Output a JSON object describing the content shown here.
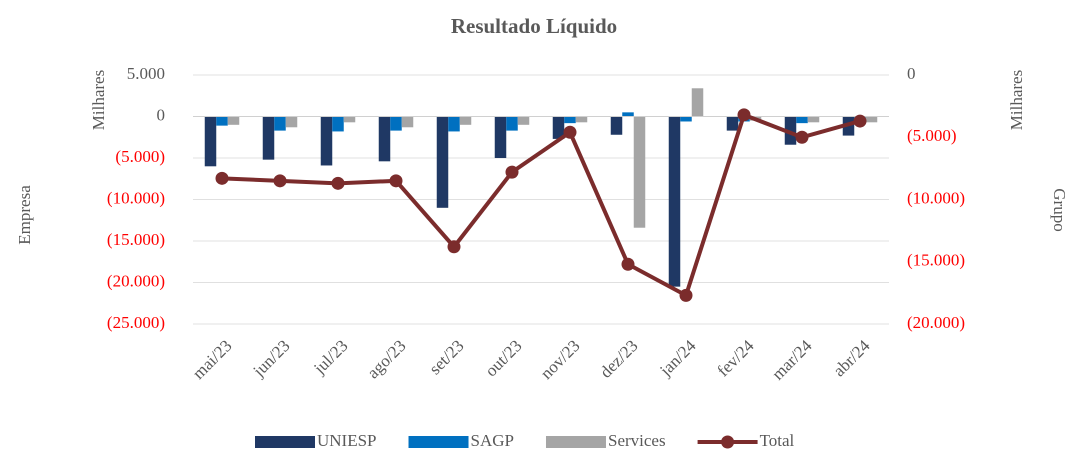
{
  "chart_data": {
    "type": "bar_line",
    "title": "Resultado Líquido",
    "y_label": "Empresa",
    "y_unit": "Milhares",
    "y2_label": "Grupo",
    "y2_unit": "Milhares",
    "categories": [
      "mai/23",
      "jun/23",
      "jul/23",
      "ago/23",
      "set/23",
      "out/23",
      "nov/23",
      "dez/23",
      "jan/24",
      "fev/24",
      "mar/24",
      "abr/24"
    ],
    "series": [
      {
        "name": "UNIESP",
        "color": "#1f3864",
        "kind": "bar",
        "values": [
          -6000,
          -5200,
          -5900,
          -5400,
          -11000,
          -5000,
          -2700,
          -2200,
          -20500,
          -1700,
          -3400,
          -2300
        ]
      },
      {
        "name": "SAGP",
        "color": "#0070c0",
        "kind": "bar",
        "values": [
          -1100,
          -1700,
          -1800,
          -1700,
          -1800,
          -1700,
          -800,
          500,
          -600,
          -600,
          -800,
          -400
        ]
      },
      {
        "name": "Services",
        "color": "#a5a5a5",
        "kind": "bar",
        "values": [
          -1000,
          -1300,
          -700,
          -1300,
          -1000,
          -1000,
          -700,
          -13400,
          3400,
          -500,
          -700,
          -700
        ]
      },
      {
        "name": "Total",
        "color": "#7b2c2c",
        "kind": "line",
        "axis": "y2",
        "values": [
          -8300,
          -8500,
          -8700,
          -8500,
          -13800,
          -7800,
          -4600,
          -15200,
          -17700,
          -3200,
          -5000,
          -3700
        ]
      }
    ],
    "ylim": [
      -25000,
      5000
    ],
    "yticks": [
      {
        "value": 5000,
        "label": "5.000"
      },
      0,
      {
        "value": -5000,
        "label": "(5.000)"
      },
      {
        "value": -10000,
        "label": "(10.000)"
      },
      {
        "value": -15000,
        "label": "(15.000)"
      },
      {
        "value": -20000,
        "label": "(20.000)"
      },
      {
        "value": -25000,
        "label": "(25.000)"
      }
    ],
    "y2lim": [
      -20000,
      0
    ],
    "y2ticks": [
      0,
      {
        "value": -5000,
        "label": "(5.000)"
      },
      {
        "value": -10000,
        "label": "(10.000)"
      },
      {
        "value": -15000,
        "label": "(15.000)"
      },
      {
        "value": -20000,
        "label": "(20.000)"
      }
    ],
    "negative_tick_color": "#ff0000",
    "grid": true,
    "legend": "bottom"
  }
}
